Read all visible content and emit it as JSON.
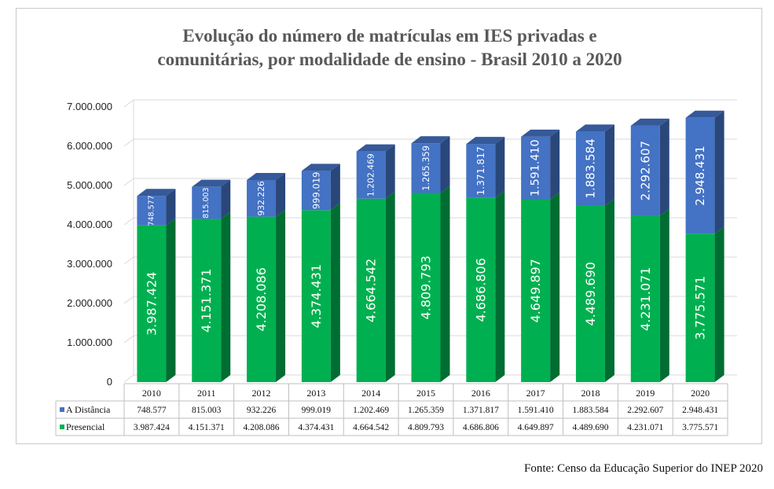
{
  "source": "Fonte: Censo da Educação Superior do INEP 2020",
  "chart_data": {
    "type": "bar",
    "stacked": true,
    "three_d": true,
    "title_lines": [
      "Evolução do número de matrículas em IES privadas e",
      "comunitárias, por modalidade de ensino - Brasil 2010 a 2020"
    ],
    "categories": [
      "2010",
      "2011",
      "2012",
      "2013",
      "2014",
      "2015",
      "2016",
      "2017",
      "2018",
      "2019",
      "2020"
    ],
    "ylim": [
      0,
      7000000
    ],
    "yticks": [
      0,
      1000000,
      2000000,
      3000000,
      4000000,
      5000000,
      6000000,
      7000000
    ],
    "ytick_labels": [
      "0",
      "1.000.000",
      "2.000.000",
      "3.000.000",
      "4.000.000",
      "5.000.000",
      "6.000.000",
      "7.000.000"
    ],
    "grid": true,
    "legend": "data-table",
    "series": [
      {
        "name": "Presencial",
        "color": "#00b050",
        "values": [
          3987424,
          4151371,
          4208086,
          4374431,
          4664542,
          4809793,
          4686806,
          4649897,
          4489690,
          4231071,
          3775571
        ],
        "labels": [
          "3.987.424",
          "4.151.371",
          "4.208.086",
          "4.374.431",
          "4.664.542",
          "4.809.793",
          "4.686.806",
          "4.649.897",
          "4.489.690",
          "4.231.071",
          "3.775.571"
        ]
      },
      {
        "name": "A Distância",
        "color": "#4472c4",
        "values": [
          748577,
          815003,
          932226,
          999019,
          1202469,
          1265359,
          1371817,
          1591410,
          1883584,
          2292607,
          2948431
        ],
        "labels": [
          "748.577",
          "815.003",
          "932.226",
          "999.019",
          "1.202.469",
          "1.265.359",
          "1.371.817",
          "1.591.410",
          "1.883.584",
          "2.292.607",
          "2.948.431"
        ]
      }
    ]
  }
}
